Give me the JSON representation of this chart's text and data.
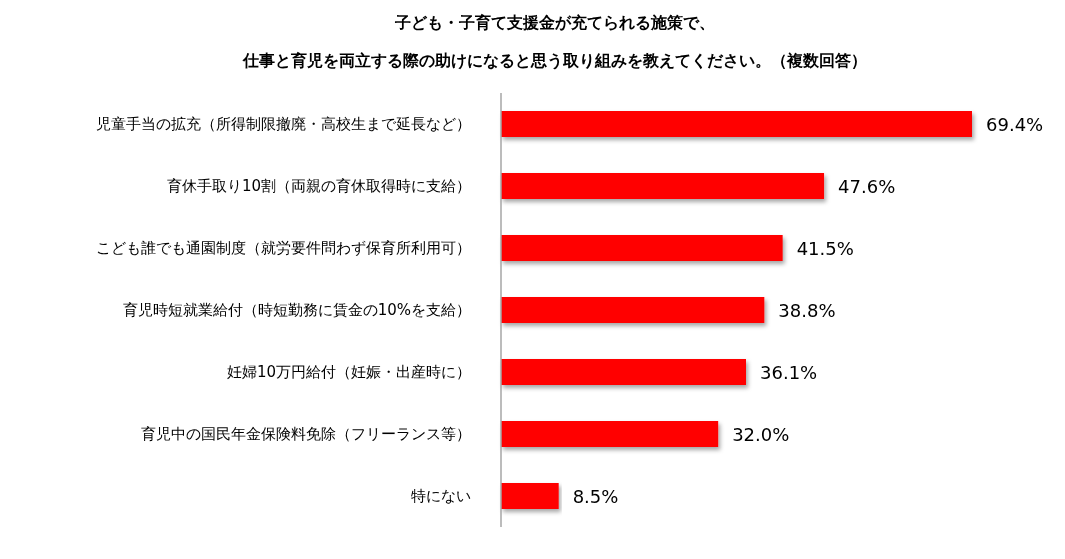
{
  "chart_data": {
    "type": "bar",
    "orientation": "horizontal",
    "title": "子ども・子育て支援金が充てられる施策で、",
    "subtitle": "仕事と育児を両立する際の助けになると思う取り組みを教えてください。（複数回答）",
    "categories": [
      "児童手当の拡充（所得制限撤廃・高校生まで延長など）",
      "育休手取り10割（両親の育休取得時に支給）",
      "こども誰でも通園制度（就労要件問わず保育所利用可）",
      "育児時短就業給付（時短勤務に賃金の10%を支給）",
      "妊婦10万円給付（妊娠・出産時に）",
      "育児中の国民年金保険料免除（フリーランス等）",
      "特にない"
    ],
    "values": [
      69.4,
      47.6,
      41.5,
      38.8,
      36.1,
      32.0,
      8.5
    ],
    "value_labels": [
      "69.4%",
      "47.6%",
      "41.5%",
      "38.8%",
      "36.1%",
      "32.0%",
      "8.5%"
    ],
    "color": "#ff0000"
  }
}
